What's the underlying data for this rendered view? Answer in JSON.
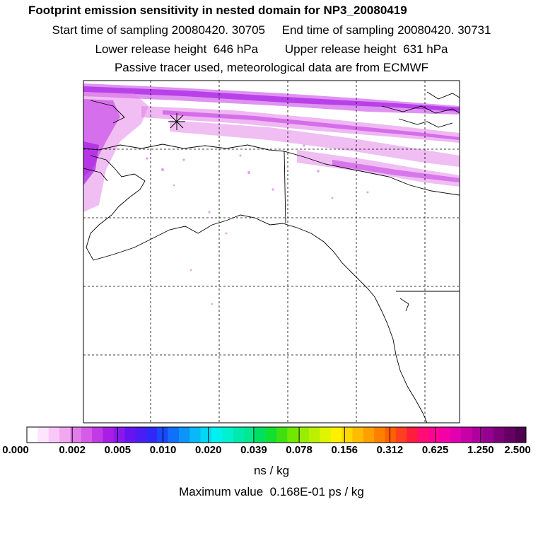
{
  "title": "Footprint emission sensitivity in nested domain for NP3_20080419",
  "header": {
    "start": "Start time of sampling 20080420. 30705",
    "end": "End time of sampling 20080420. 30731",
    "lower": "Lower release height  646 hPa",
    "upper": "Upper release height  631 hPa",
    "note": "Passive tracer used, meteorological data are from ECMWF"
  },
  "colorbar": {
    "ticks": [
      "0.000",
      "0.002",
      "0.005",
      "0.010",
      "0.020",
      "0.039",
      "0.078",
      "0.156",
      "0.312",
      "0.625",
      "1.250",
      "2.500"
    ],
    "colors": [
      "#ffffff",
      "#fde6fd",
      "#f8c8f8",
      "#f1a8f1",
      "#e27ee8",
      "#d45ce8",
      "#c23ae6",
      "#a81ee6",
      "#8a18ee",
      "#6814f0",
      "#4c1cf4",
      "#3028f8",
      "#1a48fa",
      "#1070fa",
      "#0c94fa",
      "#08b8f8",
      "#00d8f4",
      "#00f0f0",
      "#00f0d0",
      "#00eab0",
      "#00e890",
      "#00e060",
      "#10e030",
      "#40e010",
      "#70e800",
      "#98ee00",
      "#bcf000",
      "#e0f400",
      "#fff000",
      "#ffd800",
      "#ffbc00",
      "#ffa000",
      "#ff8000",
      "#ff6000",
      "#ff4020",
      "#ff1c3c",
      "#ff0c74",
      "#ff0494",
      "#f400a8",
      "#e000b0",
      "#c800a8",
      "#b0009c",
      "#960090",
      "#7c0078",
      "#640064",
      "#500050"
    ],
    "unit": "ns / kg",
    "max_label": "Maximum value  0.168E-01 ps / kg"
  }
}
